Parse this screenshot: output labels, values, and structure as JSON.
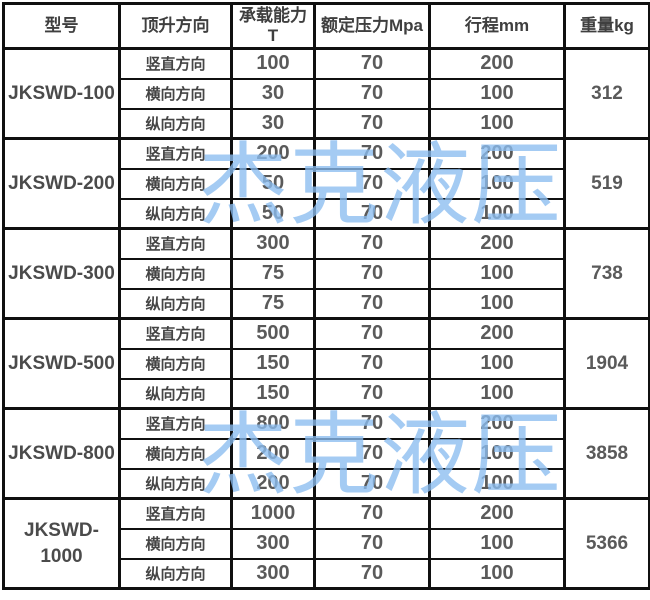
{
  "header": {
    "columns": [
      "型号",
      "顶升方向",
      "承载能力\nT",
      "额定压力Mpa",
      "行程mm",
      "重量kg"
    ]
  },
  "watermark": {
    "text": "杰克液压",
    "color": "#8abcf0"
  },
  "table": {
    "groups": [
      {
        "model": "JKSWD-100",
        "weight": "312",
        "rows": [
          {
            "direction": "竖直方向",
            "capacity": "100",
            "pressure": "70",
            "stroke": "200"
          },
          {
            "direction": "横向方向",
            "capacity": "30",
            "pressure": "70",
            "stroke": "100"
          },
          {
            "direction": "纵向方向",
            "capacity": "30",
            "pressure": "70",
            "stroke": "100"
          }
        ]
      },
      {
        "model": "JKSWD-200",
        "weight": "519",
        "rows": [
          {
            "direction": "竖直方向",
            "capacity": "200",
            "pressure": "70",
            "stroke": "200"
          },
          {
            "direction": "横向方向",
            "capacity": "50",
            "pressure": "70",
            "stroke": "100"
          },
          {
            "direction": "纵向方向",
            "capacity": "50",
            "pressure": "70",
            "stroke": "100"
          }
        ]
      },
      {
        "model": "JKSWD-300",
        "weight": "738",
        "rows": [
          {
            "direction": "竖直方向",
            "capacity": "300",
            "pressure": "70",
            "stroke": "200"
          },
          {
            "direction": "横向方向",
            "capacity": "75",
            "pressure": "70",
            "stroke": "100"
          },
          {
            "direction": "纵向方向",
            "capacity": "75",
            "pressure": "70",
            "stroke": "100"
          }
        ]
      },
      {
        "model": "JKSWD-500",
        "weight": "1904",
        "rows": [
          {
            "direction": "竖直方向",
            "capacity": "500",
            "pressure": "70",
            "stroke": "200"
          },
          {
            "direction": "横向方向",
            "capacity": "150",
            "pressure": "70",
            "stroke": "100"
          },
          {
            "direction": "纵向方向",
            "capacity": "150",
            "pressure": "70",
            "stroke": "100"
          }
        ]
      },
      {
        "model": "JKSWD-800",
        "weight": "3858",
        "rows": [
          {
            "direction": "竖直方向",
            "capacity": "800",
            "pressure": "70",
            "stroke": "200"
          },
          {
            "direction": "横向方向",
            "capacity": "200",
            "pressure": "70",
            "stroke": "100"
          },
          {
            "direction": "纵向方向",
            "capacity": "200",
            "pressure": "70",
            "stroke": "100"
          }
        ]
      },
      {
        "model": "JKSWD-\n1000",
        "weight": "5366",
        "rows": [
          {
            "direction": "竖直方向",
            "capacity": "1000",
            "pressure": "70",
            "stroke": "200"
          },
          {
            "direction": "横向方向",
            "capacity": "300",
            "pressure": "70",
            "stroke": "100"
          },
          {
            "direction": "纵向方向",
            "capacity": "300",
            "pressure": "70",
            "stroke": "100"
          }
        ]
      }
    ]
  }
}
